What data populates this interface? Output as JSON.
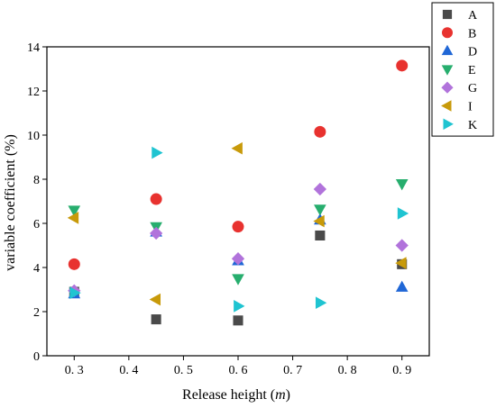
{
  "chart_data": {
    "type": "scatter",
    "title": "",
    "xlabel": "Release height (",
    "xlabel_unit": "m",
    "xlabel_close": ")",
    "ylabel": "variable coefficient (%)",
    "xlim": [
      0.25,
      0.95
    ],
    "ylim": [
      0,
      14
    ],
    "x_ticks": [
      0.3,
      0.4,
      0.5,
      0.6,
      0.7,
      0.8,
      0.9
    ],
    "x_tick_labels": [
      "0. 3",
      "0. 4",
      "0. 5",
      "0. 6",
      "0. 7",
      "0. 8",
      "0. 9"
    ],
    "y_ticks": [
      0,
      2,
      4,
      6,
      8,
      10,
      12,
      14
    ],
    "y_tick_labels": [
      "0",
      "2",
      "4",
      "6",
      "8",
      "10",
      "12",
      "14"
    ],
    "grid": false,
    "legend_position": "outside-top-right",
    "series": [
      {
        "name": "A",
        "marker": "square",
        "color": "#4a4a4a",
        "points": [
          [
            0.3,
            2.9
          ],
          [
            0.45,
            1.65
          ],
          [
            0.6,
            1.6
          ],
          [
            0.75,
            5.45
          ],
          [
            0.9,
            4.15
          ]
        ]
      },
      {
        "name": "B",
        "marker": "circle",
        "color": "#e8322f",
        "points": [
          [
            0.3,
            4.15
          ],
          [
            0.45,
            7.1
          ],
          [
            0.6,
            5.85
          ],
          [
            0.75,
            10.15
          ],
          [
            0.9,
            13.15
          ]
        ]
      },
      {
        "name": "D",
        "marker": "triangle-up",
        "color": "#2067d6",
        "points": [
          [
            0.3,
            2.8
          ],
          [
            0.45,
            5.6
          ],
          [
            0.6,
            4.3
          ],
          [
            0.75,
            6.15
          ],
          [
            0.9,
            3.1
          ]
        ]
      },
      {
        "name": "E",
        "marker": "triangle-down",
        "color": "#27ae6e",
        "points": [
          [
            0.3,
            6.6
          ],
          [
            0.45,
            5.85
          ],
          [
            0.6,
            3.5
          ],
          [
            0.75,
            6.65
          ],
          [
            0.9,
            7.8
          ]
        ]
      },
      {
        "name": "G",
        "marker": "diamond",
        "color": "#b173db",
        "points": [
          [
            0.3,
            2.95
          ],
          [
            0.45,
            5.55
          ],
          [
            0.6,
            4.4
          ],
          [
            0.75,
            7.55
          ],
          [
            0.9,
            5.0
          ]
        ]
      },
      {
        "name": "I",
        "marker": "triangle-left",
        "color": "#c89a0a",
        "points": [
          [
            0.3,
            6.25
          ],
          [
            0.45,
            2.55
          ],
          [
            0.6,
            9.4
          ],
          [
            0.75,
            6.1
          ],
          [
            0.9,
            4.2
          ]
        ]
      },
      {
        "name": "K",
        "marker": "triangle-right",
        "color": "#1fc4d1",
        "points": [
          [
            0.3,
            2.85
          ],
          [
            0.45,
            9.2
          ],
          [
            0.6,
            2.25
          ],
          [
            0.75,
            2.4
          ],
          [
            0.9,
            6.45
          ]
        ]
      }
    ]
  }
}
